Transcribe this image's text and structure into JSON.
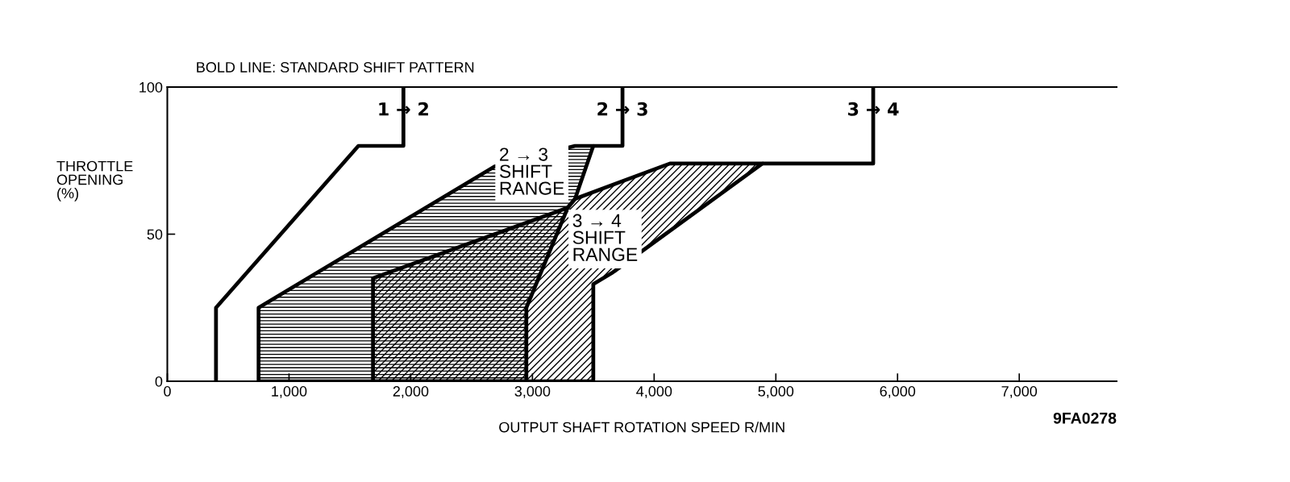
{
  "chart_data": {
    "type": "line",
    "title": "BOLD LINE: STANDARD SHIFT PATTERN",
    "xlabel": "OUTPUT SHAFT ROTATION SPEED R/MIN",
    "ylabel": "THROTTLE\nOPENING\n(%)",
    "xlim": [
      0,
      7800
    ],
    "ylim": [
      0,
      100
    ],
    "xticks": [
      0,
      {
        "value": 1000,
        "label": "1,000"
      },
      {
        "value": 2000,
        "label": "2,000"
      },
      {
        "value": 3000,
        "label": "3,000"
      },
      {
        "value": 4000,
        "label": "4,000"
      },
      {
        "value": 5000,
        "label": "5,000"
      },
      {
        "value": 6000,
        "label": "6,000"
      },
      {
        "value": 7000,
        "label": "7,000"
      }
    ],
    "yticks": [
      0,
      50,
      100
    ],
    "series": [
      {
        "type": "area",
        "color": "#000000",
        "x": [
          750,
          750,
          2690,
          3350,
          3500,
          3350,
          3290,
          2950,
          2950
        ],
        "values": [
          0,
          25,
          73,
          80,
          80,
          62,
          59,
          25,
          0
        ]
      },
      {
        "type": "area",
        "color": "#000000",
        "x": [
          1690,
          1690,
          3290,
          3350,
          4130,
          4890,
          3660,
          3500,
          3500
        ],
        "values": [
          0,
          35,
          59,
          62,
          74,
          74,
          37,
          33,
          0
        ]
      },
      {
        "color": "#000000",
        "x": [
          400,
          400,
          1570,
          1940,
          1940
        ],
        "values": [
          0,
          25,
          80,
          80,
          100
        ]
      },
      {
        "color": "#000000",
        "x": [
          3740,
          3740,
          3500
        ],
        "values": [
          100,
          80,
          80
        ]
      },
      {
        "color": "#000000",
        "x": [
          5800,
          5800,
          4890
        ],
        "values": [
          100,
          74,
          74
        ]
      }
    ],
    "annotations": [
      {
        "text": "1 → 2",
        "x": 1940,
        "y": 92
      },
      {
        "text": "2 → 3",
        "x": 3740,
        "y": 92
      },
      {
        "text": "3 → 4",
        "x": 5800,
        "y": 92
      },
      "2 → 3\nSHIFT\nRANGE",
      "3 → 4\nSHIFT\nRANGE",
      "9FA0278"
    ]
  }
}
